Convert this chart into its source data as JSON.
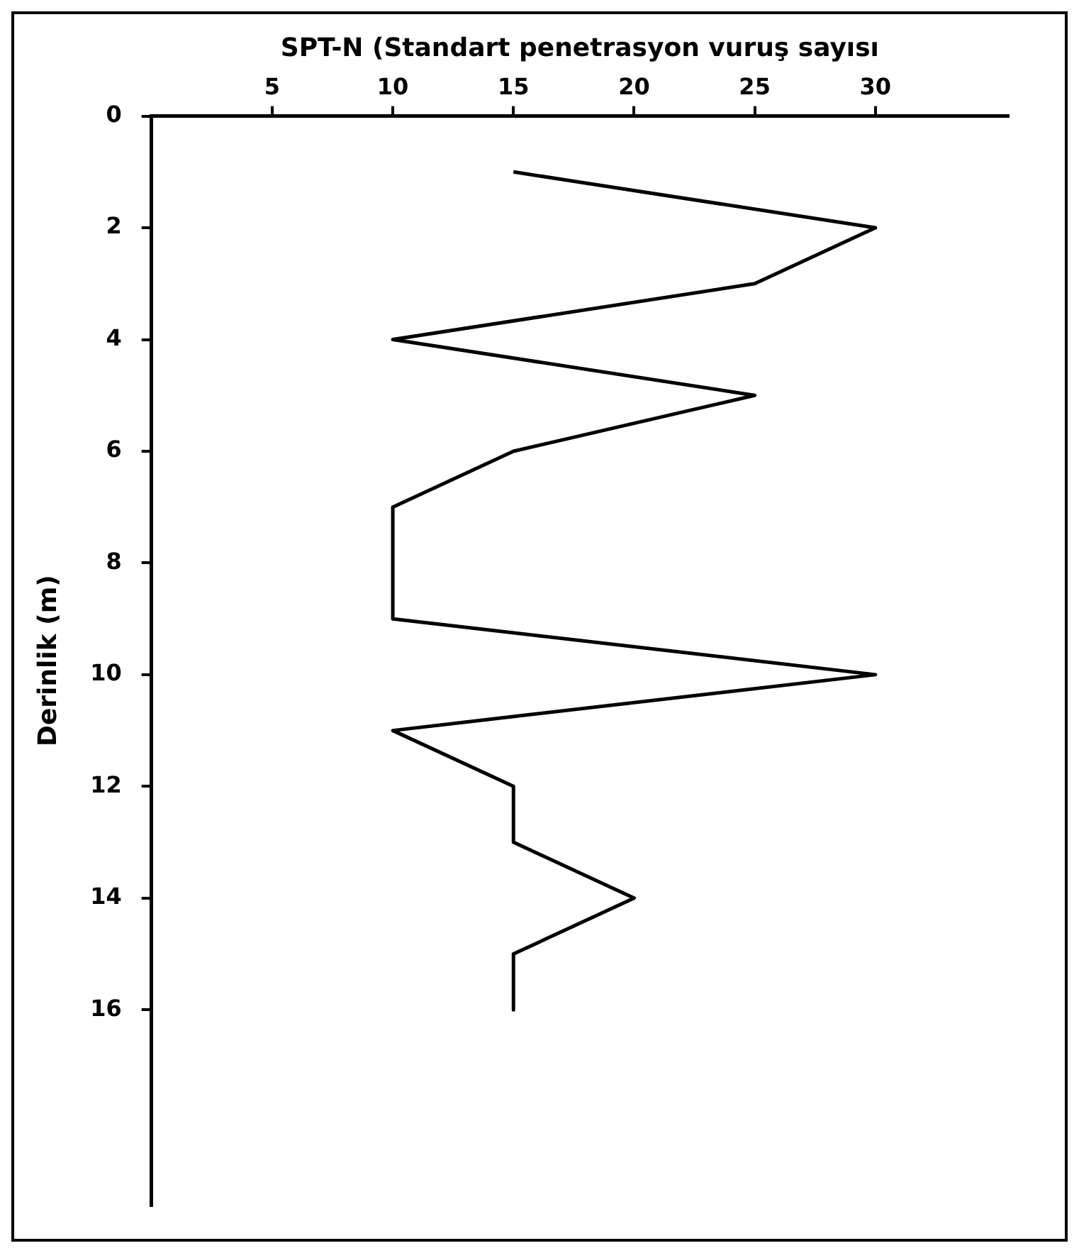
{
  "chart_data": {
    "type": "line",
    "xlabel": "SPT-N (Standart penetrasyon vuruş sayısı",
    "ylabel": "Derinlik (m)",
    "series": [
      {
        "color": "#000000",
        "x": [
          15,
          30,
          25,
          10,
          25,
          15,
          10,
          10,
          30,
          10,
          15,
          15,
          20,
          15,
          15
        ],
        "values": [
          1,
          2,
          3,
          4,
          5,
          6,
          7,
          9,
          10,
          11,
          12,
          13,
          14,
          15,
          16
        ]
      }
    ],
    "xlim": [
      0,
      35.5
    ],
    "xticks": [
      5,
      10,
      15,
      20,
      25,
      30
    ],
    "ylim": [
      19.5,
      0
    ],
    "yticks": [
      0,
      2,
      4,
      6,
      8,
      10,
      12,
      14,
      16
    ],
    "grid": false,
    "legend": false,
    "marker": "none",
    "line_style": "solid"
  }
}
